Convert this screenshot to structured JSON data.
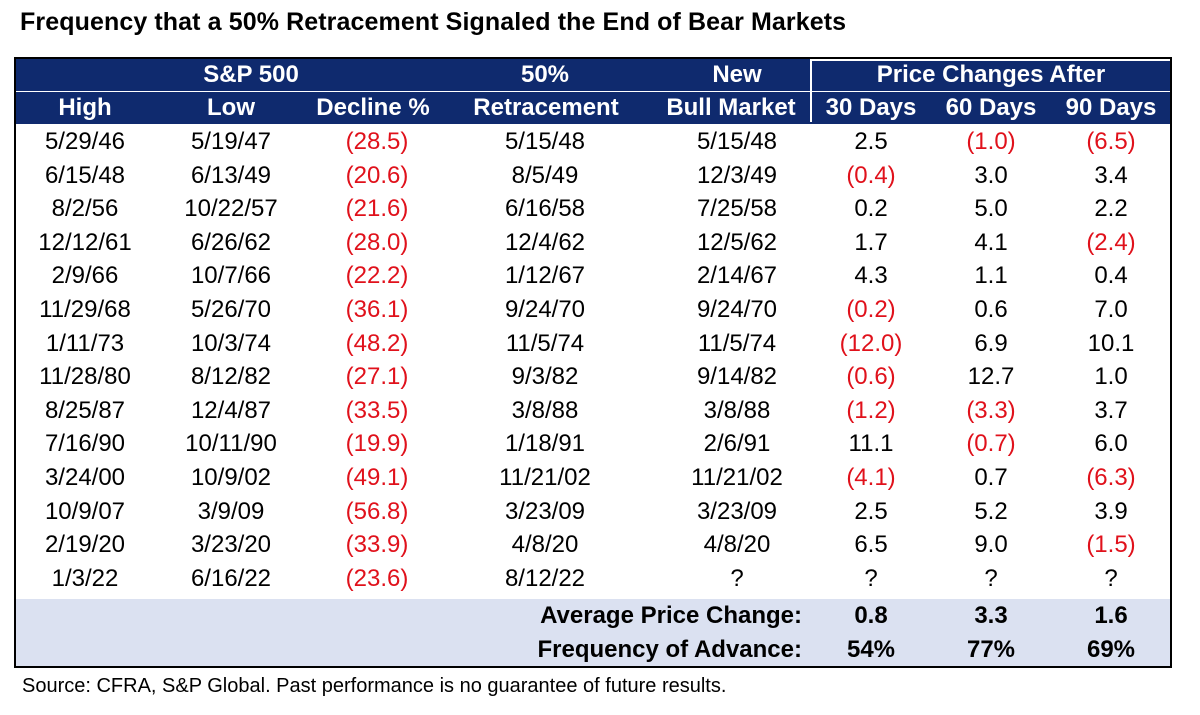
{
  "title": "Frequency that a 50% Retracement Signaled the End of Bear Markets",
  "header": {
    "sp500": "S&P 500",
    "retracement_top": "50%",
    "retracement_bottom": "Retracement",
    "bull_top": "New",
    "bull_bottom": "Bull Market",
    "price_changes": "Price Changes After",
    "high": "High",
    "low": "Low",
    "decline": "Decline %",
    "d30": "30 Days",
    "d60": "60 Days",
    "d90": "90 Days"
  },
  "rows": [
    {
      "high": "5/29/46",
      "low": "5/19/47",
      "decline": "(28.5)",
      "retracement": "5/15/48",
      "bull": "5/15/48",
      "d30": "2.5",
      "d60": "(1.0)",
      "d90": "(6.5)"
    },
    {
      "high": "6/15/48",
      "low": "6/13/49",
      "decline": "(20.6)",
      "retracement": "8/5/49",
      "bull": "12/3/49",
      "d30": "(0.4)",
      "d60": "3.0",
      "d90": "3.4"
    },
    {
      "high": "8/2/56",
      "low": "10/22/57",
      "decline": "(21.6)",
      "retracement": "6/16/58",
      "bull": "7/25/58",
      "d30": "0.2",
      "d60": "5.0",
      "d90": "2.2"
    },
    {
      "high": "12/12/61",
      "low": "6/26/62",
      "decline": "(28.0)",
      "retracement": "12/4/62",
      "bull": "12/5/62",
      "d30": "1.7",
      "d60": "4.1",
      "d90": "(2.4)"
    },
    {
      "high": "2/9/66",
      "low": "10/7/66",
      "decline": "(22.2)",
      "retracement": "1/12/67",
      "bull": "2/14/67",
      "d30": "4.3",
      "d60": "1.1",
      "d90": "0.4"
    },
    {
      "high": "11/29/68",
      "low": "5/26/70",
      "decline": "(36.1)",
      "retracement": "9/24/70",
      "bull": "9/24/70",
      "d30": "(0.2)",
      "d60": "0.6",
      "d90": "7.0"
    },
    {
      "high": "1/11/73",
      "low": "10/3/74",
      "decline": "(48.2)",
      "retracement": "11/5/74",
      "bull": "11/5/74",
      "d30": "(12.0)",
      "d60": "6.9",
      "d90": "10.1"
    },
    {
      "high": "11/28/80",
      "low": "8/12/82",
      "decline": "(27.1)",
      "retracement": "9/3/82",
      "bull": "9/14/82",
      "d30": "(0.6)",
      "d60": "12.7",
      "d90": "1.0"
    },
    {
      "high": "8/25/87",
      "low": "12/4/87",
      "decline": "(33.5)",
      "retracement": "3/8/88",
      "bull": "3/8/88",
      "d30": "(1.2)",
      "d60": "(3.3)",
      "d90": "3.7"
    },
    {
      "high": "7/16/90",
      "low": "10/11/90",
      "decline": "(19.9)",
      "retracement": "1/18/91",
      "bull": "2/6/91",
      "d30": "11.1",
      "d60": "(0.7)",
      "d90": "6.0"
    },
    {
      "high": "3/24/00",
      "low": "10/9/02",
      "decline": "(49.1)",
      "retracement": "11/21/02",
      "bull": "11/21/02",
      "d30": "(4.1)",
      "d60": "0.7",
      "d90": "(6.3)"
    },
    {
      "high": "10/9/07",
      "low": "3/9/09",
      "decline": "(56.8)",
      "retracement": "3/23/09",
      "bull": "3/23/09",
      "d30": "2.5",
      "d60": "5.2",
      "d90": "3.9"
    },
    {
      "high": "2/19/20",
      "low": "3/23/20",
      "decline": "(33.9)",
      "retracement": "4/8/20",
      "bull": "4/8/20",
      "d30": "6.5",
      "d60": "9.0",
      "d90": "(1.5)"
    },
    {
      "high": "1/3/22",
      "low": "6/16/22",
      "decline": "(23.6)",
      "retracement": "8/12/22",
      "bull": "?",
      "d30": "?",
      "d60": "?",
      "d90": "?"
    }
  ],
  "summary": {
    "avg_label": "Average Price Change:",
    "avg_30": "0.8",
    "avg_60": "3.3",
    "avg_90": "1.6",
    "freq_label": "Frequency of Advance:",
    "freq_30": "54%",
    "freq_60": "77%",
    "freq_90": "69%"
  },
  "source": "Source: CFRA, S&P Global. Past performance is no guarantee of future results.",
  "colors": {
    "header_bg": "#0f2a6e",
    "negative": "#e0111b",
    "summary_bg": "#dbe1f1"
  }
}
